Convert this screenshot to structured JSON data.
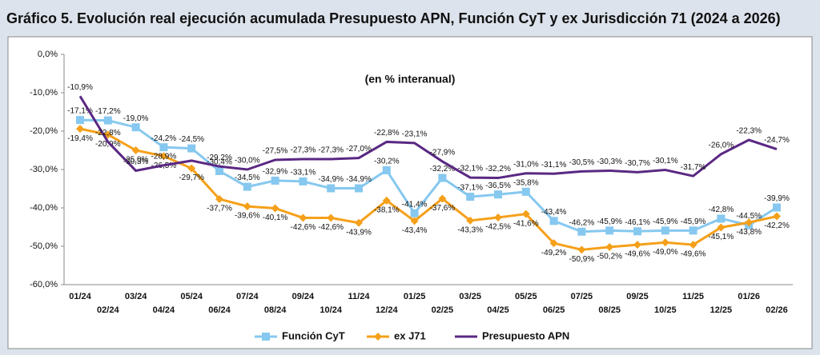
{
  "chart_data": {
    "type": "line",
    "title": "Gráfico 5. Evolución real ejecución acumulada Presupuesto APN, Función CyT y ex Jurisdicción 71 (2024 a 2026)",
    "subtitle": "(en % interanual)",
    "categories": [
      "01/24",
      "02/24",
      "03/24",
      "04/24",
      "05/24",
      "06/24",
      "07/24",
      "08/24",
      "09/24",
      "10/24",
      "11/24",
      "12/24",
      "01/25",
      "02/25",
      "03/25",
      "04/25",
      "05/25",
      "06/25",
      "07/25",
      "08/25",
      "09/25",
      "10/25",
      "11/25",
      "12/25",
      "01/26",
      "02/26"
    ],
    "series": [
      {
        "name": "Función CyT",
        "color": "#86c8ef",
        "marker": "square",
        "values": [
          -17.1,
          -17.2,
          -19.0,
          -24.2,
          -24.5,
          -30.4,
          -34.5,
          -32.9,
          -33.1,
          -34.9,
          -34.9,
          -30.2,
          -41.4,
          -32.2,
          -37.1,
          -36.5,
          -35.8,
          -43.4,
          -46.2,
          -45.9,
          -46.1,
          -45.9,
          -45.9,
          -42.8,
          -44.5,
          -39.9
        ],
        "value_labels": [
          "-17,1%",
          "-17,2%",
          "-19,0%",
          "-24,2%",
          "-24,5%",
          "-30,4%",
          "-34,5%",
          "-32,9%",
          "-33,1%",
          "-34,9%",
          "-34,9%",
          "-30,2%",
          "-41,4%",
          "-32,2%",
          "-37,1%",
          "-36,5%",
          "-35,8%",
          "-43,4%",
          "-46,2%",
          "-45,9%",
          "-46,1%",
          "-45,9%",
          "-45,9%",
          "-42,8%",
          "-44,5%",
          "-39,9%"
        ]
      },
      {
        "name": "ex J71",
        "color": "#f5a01a",
        "marker": "diamond",
        "values": [
          -19.4,
          -20.9,
          -25.0,
          -26.5,
          -29.7,
          -37.7,
          -39.6,
          -40.1,
          -42.6,
          -42.6,
          -43.9,
          -38.1,
          -43.4,
          -37.6,
          -43.3,
          -42.5,
          -41.6,
          -49.2,
          -50.9,
          -50.2,
          -49.6,
          -49.0,
          -49.6,
          -45.1,
          -43.8,
          -42.2
        ],
        "value_labels": [
          "-19,4%",
          "-20,9%",
          "-25,0%",
          "-26,5%",
          "-29,7%",
          "-37,7%",
          "-39,6%",
          "-40,1%",
          "-42,6%",
          "-42,6%",
          "-43,9%",
          "-38,1%",
          "-43,4%",
          "-37,6%",
          "-43,3%",
          "-42,5%",
          "-41,6%",
          "-49,2%",
          "-50,9%",
          "-50,2%",
          "-49,6%",
          "-49,0%",
          "-49,6%",
          "-45,1%",
          "-43,8%",
          "-42,2%"
        ]
      },
      {
        "name": "Presupuesto APN",
        "color": "#5a2883",
        "marker": "none",
        "values": [
          -10.9,
          -22.8,
          -30.3,
          -28.9,
          -27.7,
          -29.2,
          -30.0,
          -27.5,
          -27.3,
          -27.3,
          -27.0,
          -22.8,
          -23.1,
          -27.9,
          -32.1,
          -32.2,
          -31.0,
          -31.1,
          -30.5,
          -30.3,
          -30.7,
          -30.1,
          -31.7,
          -26.0,
          -22.3,
          -24.7
        ],
        "value_labels": [
          "-10,9%",
          "-22,8%",
          "-30,3%",
          "-28,9%",
          null,
          "-29,2%",
          "-30,0%",
          "-27,5%",
          "-27,3%",
          "-27,3%",
          "-27,0%",
          "-22,8%",
          "-23,1%",
          "-27,9%",
          "-32,1%",
          "-32,2%",
          "-31,0%",
          "-31,1%",
          "-30,5%",
          "-30,3%",
          "-30,7%",
          "-30,1%",
          "-31,7%",
          "-26,0%",
          "-22,3%",
          "-24,7%"
        ]
      }
    ],
    "ylim": [
      -60,
      0
    ],
    "yticks": [
      {
        "value": 0,
        "label": "0,0%"
      },
      {
        "value": -10,
        "label": "-10,0%"
      },
      {
        "value": -20,
        "label": "-20,0%"
      },
      {
        "value": -30,
        "label": "-30,0%"
      },
      {
        "value": -40,
        "label": "-40,0%"
      },
      {
        "value": -50,
        "label": "-50,0%"
      },
      {
        "value": -60,
        "label": "-60,0%"
      }
    ],
    "grid": false,
    "legend": "bottom"
  }
}
